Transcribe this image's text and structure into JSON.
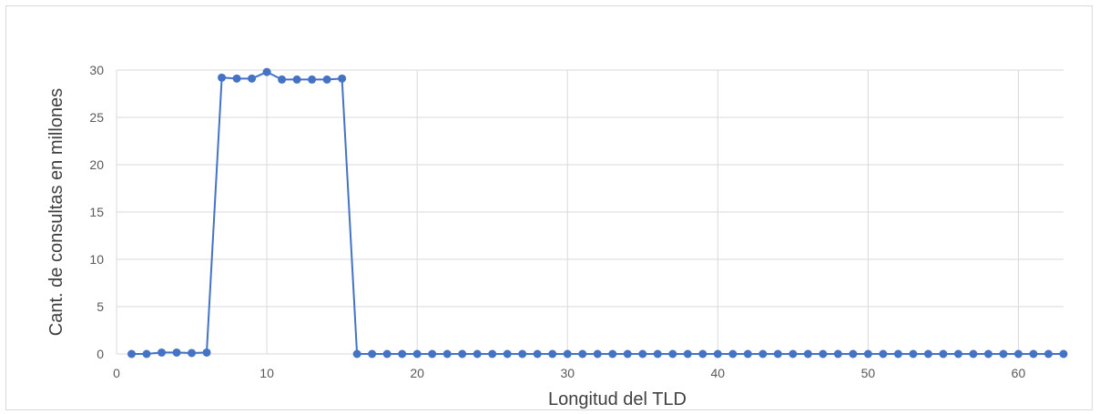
{
  "chart_data": {
    "type": "line",
    "title": "",
    "xlabel": "Longitud del TLD",
    "ylabel": "Cant. de consultas en millones",
    "xlim": [
      0,
      63
    ],
    "ylim": [
      0,
      30
    ],
    "xticks": [
      0,
      10,
      20,
      30,
      40,
      50,
      60
    ],
    "yticks": [
      0,
      5,
      10,
      15,
      20,
      25,
      30
    ],
    "grid": true,
    "legend": "none",
    "series_color": "#4472C4",
    "x": [
      1,
      2,
      3,
      4,
      5,
      6,
      7,
      8,
      9,
      10,
      11,
      12,
      13,
      14,
      15,
      16,
      17,
      18,
      19,
      20,
      21,
      22,
      23,
      24,
      25,
      26,
      27,
      28,
      29,
      30,
      31,
      32,
      33,
      34,
      35,
      36,
      37,
      38,
      39,
      40,
      41,
      42,
      43,
      44,
      45,
      46,
      47,
      48,
      49,
      50,
      51,
      52,
      53,
      54,
      55,
      56,
      57,
      58,
      59,
      60,
      61,
      62,
      63
    ],
    "y": [
      0,
      0,
      0.15,
      0.15,
      0.1,
      0.15,
      29.2,
      29.1,
      29.1,
      29.8,
      29.0,
      29.0,
      29.0,
      29.0,
      29.1,
      0,
      0,
      0,
      0,
      0,
      0,
      0,
      0,
      0,
      0,
      0,
      0,
      0,
      0,
      0,
      0,
      0,
      0,
      0,
      0,
      0,
      0,
      0,
      0,
      0,
      0,
      0,
      0,
      0,
      0,
      0,
      0,
      0,
      0,
      0,
      0,
      0,
      0,
      0,
      0,
      0,
      0,
      0,
      0,
      0,
      0,
      0,
      0
    ]
  }
}
